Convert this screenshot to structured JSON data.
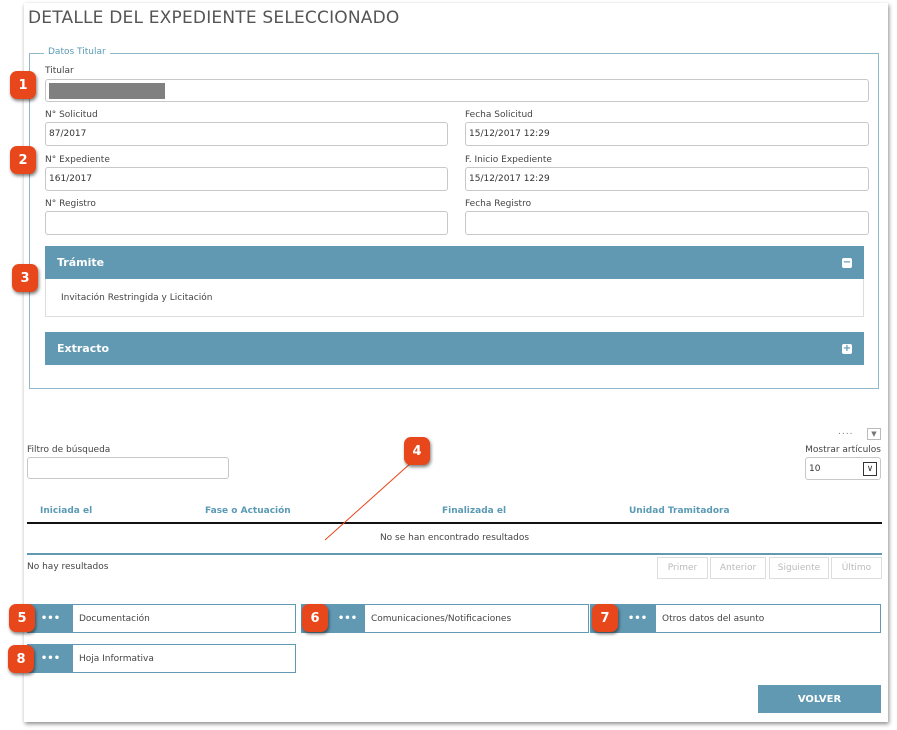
{
  "title": "DETALLE DEL EXPEDIENTE SELECCIONADO",
  "datos_titular": {
    "legend": "Datos Titular",
    "titular_label": "Titular",
    "titular_value_redacted": true,
    "solicitud_label": "N° Solicitud",
    "solicitud_value": "87/2017",
    "fecha_solicitud_label": "Fecha Solicitud",
    "fecha_solicitud_value": "15/12/2017 12:29",
    "expediente_label": "N° Expediente",
    "expediente_value": "161/2017",
    "inicio_label": "F. Inicio Expediente",
    "inicio_value": "15/12/2017 12:29",
    "registro_label": "N° Registro",
    "registro_value": "",
    "fecha_registro_label": "Fecha Registro",
    "fecha_registro_value": ""
  },
  "tramite": {
    "label": "Trámite",
    "toggle": "−",
    "content": "Invitación Restringida y Licitación"
  },
  "extracto": {
    "label": "Extracto",
    "toggle": "+"
  },
  "table": {
    "menu_dots": "....",
    "filter_label": "Filtro de búsqueda",
    "filter_value": "",
    "show_label": "Mostrar artículos",
    "show_value": "10",
    "columns": [
      "Iniciada el",
      "Fase o Actuación",
      "Finalizada el",
      "Unidad Tramitadora"
    ],
    "empty_message": "No se han encontrado resultados",
    "status": "No hay resultados",
    "pager": [
      "Primer",
      "Anterior",
      "Siguiente",
      "Último"
    ]
  },
  "actions": [
    {
      "icon": "•••",
      "label": "Documentación"
    },
    {
      "icon": "•••",
      "label": "Comunicaciones/Notificaciones"
    },
    {
      "icon": "•••",
      "label": "Otros datos del asunto"
    },
    {
      "icon": "•••",
      "label": "Hoja Informativa"
    }
  ],
  "volver": "VOLVER",
  "badges": [
    "1",
    "2",
    "3",
    "4",
    "5",
    "6",
    "7",
    "8"
  ],
  "colors": {
    "accent": "#6199b3",
    "badge": "#e8461b"
  }
}
